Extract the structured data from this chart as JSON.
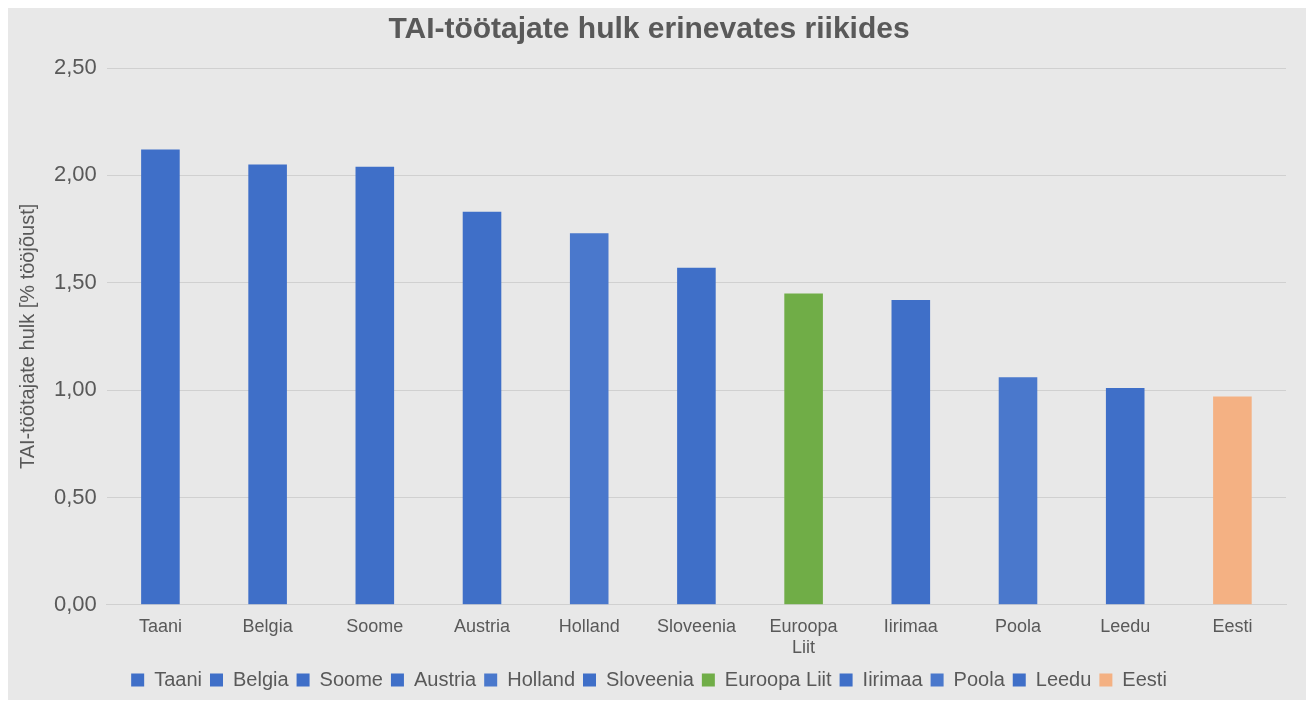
{
  "chart_data": {
    "type": "bar",
    "title": "TAI-töötajate hulk erinevates riikides",
    "ylabel": "TAI-töötajate hulk [% tööjõust]",
    "categories": [
      "Taani",
      "Belgia",
      "Soome",
      "Austria",
      "Holland",
      "Sloveenia",
      "Euroopa Liit",
      "Iirimaa",
      "Poola",
      "Leedu",
      "Eesti"
    ],
    "series": [
      {
        "name": "Taani",
        "color": "#3f6fc8",
        "values": [
          2.12,
          null,
          null,
          null,
          null,
          null,
          null,
          null,
          null,
          null,
          null
        ]
      },
      {
        "name": "Belgia",
        "color": "#3f6fc8",
        "values": [
          null,
          2.05,
          null,
          null,
          null,
          null,
          null,
          null,
          null,
          null,
          null
        ]
      },
      {
        "name": "Soome",
        "color": "#3f6fc8",
        "values": [
          null,
          null,
          2.04,
          null,
          null,
          null,
          null,
          null,
          null,
          null,
          null
        ]
      },
      {
        "name": "Austria",
        "color": "#3f6fc8",
        "values": [
          null,
          null,
          null,
          1.83,
          null,
          null,
          null,
          null,
          null,
          null,
          null
        ]
      },
      {
        "name": "Holland",
        "color": "#4a78cc",
        "values": [
          null,
          null,
          null,
          null,
          1.73,
          null,
          null,
          null,
          null,
          null,
          null
        ]
      },
      {
        "name": "Sloveenia",
        "color": "#3f6fc8",
        "values": [
          null,
          null,
          null,
          null,
          null,
          1.57,
          null,
          null,
          null,
          null,
          null
        ]
      },
      {
        "name": "Euroopa Liit",
        "color": "#70ad47",
        "values": [
          null,
          null,
          null,
          null,
          null,
          null,
          1.45,
          null,
          null,
          null,
          null
        ]
      },
      {
        "name": "Iirimaa",
        "color": "#3f6fc8",
        "values": [
          null,
          null,
          null,
          null,
          null,
          null,
          null,
          1.42,
          null,
          null,
          null
        ]
      },
      {
        "name": "Poola",
        "color": "#4a78cc",
        "values": [
          null,
          null,
          null,
          null,
          null,
          null,
          null,
          null,
          1.06,
          null,
          null
        ]
      },
      {
        "name": "Leedu",
        "color": "#3f6fc8",
        "values": [
          null,
          null,
          null,
          null,
          null,
          null,
          null,
          null,
          null,
          1.01,
          null
        ]
      },
      {
        "name": "Eesti",
        "color": "#f4b183",
        "values": [
          null,
          null,
          null,
          null,
          null,
          null,
          null,
          null,
          null,
          null,
          0.97
        ]
      }
    ],
    "ylim": [
      0,
      2.5
    ],
    "yticks": [
      {
        "value": 0,
        "label": "0,00"
      },
      {
        "value": 0.5,
        "label": "0,50"
      },
      {
        "value": 1,
        "label": "1,00"
      },
      {
        "value": 1.5,
        "label": "1,50"
      },
      {
        "value": 2,
        "label": "2,00"
      },
      {
        "value": 2.5,
        "label": "2,50"
      }
    ],
    "grid": "y",
    "legend": "bottom"
  }
}
